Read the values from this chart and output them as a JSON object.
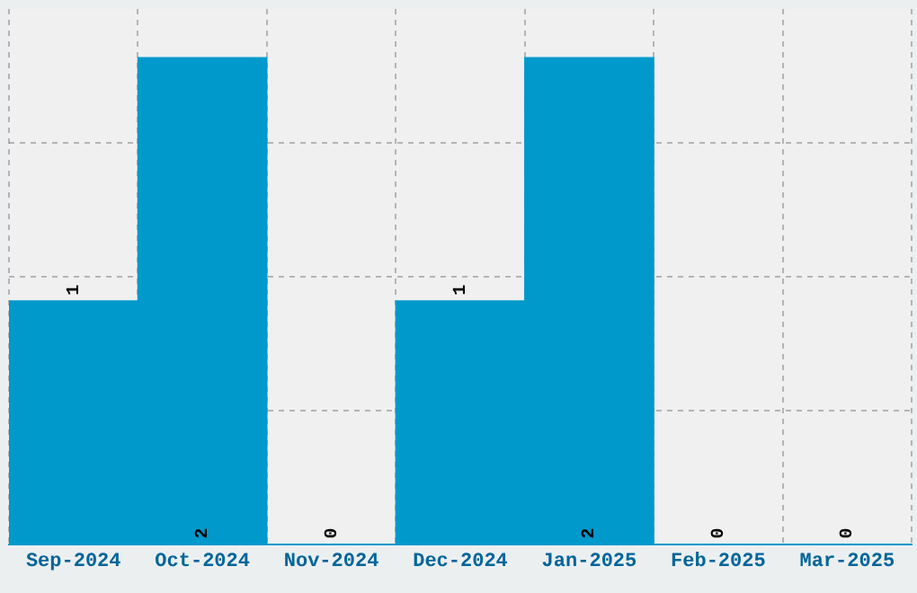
{
  "chart_data": {
    "type": "bar",
    "categories": [
      "Sep-2024",
      "Oct-2024",
      "Nov-2024",
      "Dec-2024",
      "Jan-2025",
      "Feb-2025",
      "Mar-2025"
    ],
    "values": [
      1,
      2,
      0,
      1,
      2,
      0,
      0
    ],
    "color": "#0099cc",
    "ylim": [
      0,
      2.2
    ],
    "yticks": [
      {
        "value": 0.55,
        "label": null
      },
      {
        "value": 1.1,
        "label": null
      },
      {
        "value": 1.65,
        "label": null
      }
    ],
    "tick_labels": "x",
    "grid": true,
    "data_labels": true
  }
}
